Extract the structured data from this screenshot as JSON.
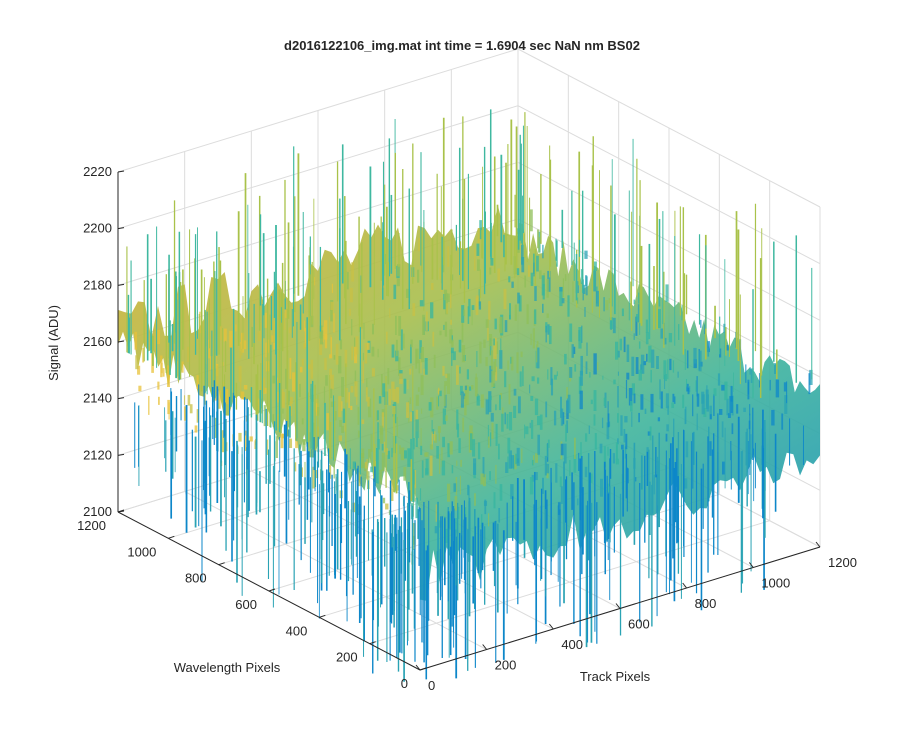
{
  "chart_data": {
    "type": "surface",
    "title": "d2016122106_img.mat int time = 1.6904 sec  NaN nm BS02",
    "xlabel": "Track Pixels",
    "ylabel": "Wavelength Pixels",
    "zlabel": "Signal (ADU)",
    "xlim": [
      0,
      1200
    ],
    "ylim": [
      0,
      1200
    ],
    "zlim": [
      2100,
      2220
    ],
    "x_ticks": [
      "0",
      "200",
      "400",
      "600",
      "800",
      "1000",
      "1200"
    ],
    "y_ticks": [
      "0",
      "200",
      "400",
      "600",
      "800",
      "1000",
      "1200"
    ],
    "z_ticks": [
      "2100",
      "2120",
      "2140",
      "2160",
      "2180",
      "2200",
      "2220"
    ],
    "surface_mean": 2150,
    "surface_range": [
      2090,
      2210
    ],
    "grid": true,
    "colormap": "parula",
    "colors": {
      "low": "#0d87c9",
      "mid": "#35b5a0",
      "high": "#e8c23a"
    }
  }
}
